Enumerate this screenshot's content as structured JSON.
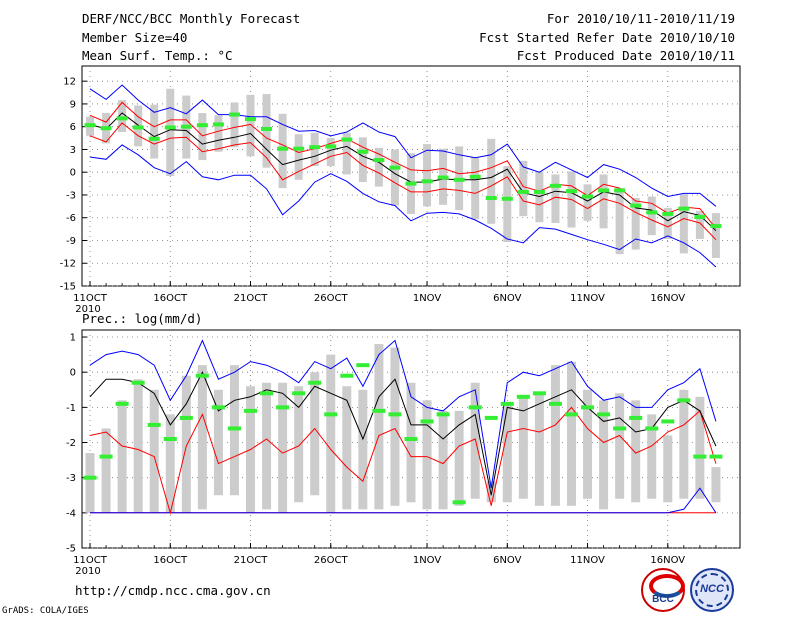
{
  "header": {
    "title": "DERF/NCC/BCC Monthly Forecast",
    "member_size": "Member Size=40",
    "variable": "Mean Surf. Temp.: °C",
    "period": "For 2010/10/11-2010/11/19",
    "fcst_started": "Fcst Started Refer Date 2010/10/10",
    "fcst_produced": "Fcst Produced Date 2010/10/11"
  },
  "footer": {
    "url": "http://cmdp.ncc.cma.gov.cn",
    "grads": "GrADS: COLA/IGES",
    "logo_bcc_text": "BCC",
    "logo_ncc_text": "NCC"
  },
  "colors": {
    "mean": "#000000",
    "spread": "#ff0000",
    "extreme": "#0000ff",
    "obs": "#33ee33",
    "box": "#cccccc"
  },
  "chart_data": [
    {
      "type": "line",
      "title": "Mean Surf. Temp.: °C",
      "ylim": [
        -15,
        14
      ],
      "yticks": [
        "12",
        "9",
        "6",
        "3",
        "0",
        "-3",
        "-6",
        "-9",
        "-12",
        "-15"
      ],
      "ytick_values": [
        12,
        9,
        6,
        3,
        0,
        -3,
        -6,
        -9,
        -12,
        -15
      ],
      "x": [
        11,
        12,
        13,
        14,
        15,
        16,
        17,
        18,
        19,
        20,
        21,
        22,
        23,
        24,
        25,
        26,
        27,
        28,
        29,
        30,
        31,
        32,
        33,
        34,
        35,
        36,
        37,
        38,
        39,
        40,
        41,
        42,
        43,
        44,
        45,
        46,
        47,
        48,
        49,
        50
      ],
      "xticks": [
        "11OCT",
        "16OCT",
        "21OCT",
        "26OCT",
        "1NOV",
        "6NOV",
        "11NOV",
        "16NOV"
      ],
      "xtick_values": [
        11,
        16,
        21,
        26,
        32,
        37,
        42,
        47
      ],
      "xtick_year": "2010",
      "series": [
        {
          "name": "ensemble-max",
          "values": [
            11,
            9.6,
            11.5,
            9.5,
            7.9,
            8.5,
            7.7,
            9.5,
            7.6,
            7.6,
            7.3,
            7.3,
            6.3,
            5.4,
            5.5,
            4.8,
            5.3,
            6.5,
            5.3,
            4.7,
            1.9,
            2.9,
            2.8,
            2.3,
            1.9,
            2.3,
            3.7,
            0.7,
            0,
            1.3,
            0.3,
            -0.7,
            1,
            0.4,
            -0.7,
            -2.1,
            -3.2,
            -2.8,
            -2.8,
            -4.5
          ]
        },
        {
          "name": "upper-spread",
          "values": [
            7.5,
            6.6,
            9.2,
            7.3,
            6,
            6.9,
            6.9,
            4.8,
            5.4,
            5.9,
            6.3,
            4.5,
            3.6,
            2.6,
            3.1,
            3.8,
            4.4,
            3.3,
            2.4,
            1.3,
            0.3,
            0.2,
            0.5,
            -0.2,
            0,
            0.6,
            1.5,
            -1.9,
            -2.5,
            -1.6,
            -1.8,
            -3.1,
            -1.6,
            -2.1,
            -3.8,
            -4.1,
            -5.4,
            -4.6,
            -4.8,
            -7.4
          ]
        },
        {
          "name": "ensemble-mean",
          "values": [
            6.3,
            5.7,
            7.8,
            6.2,
            4.7,
            5.6,
            5.5,
            3.7,
            4.2,
            4.6,
            5.1,
            3,
            1,
            1.6,
            2.1,
            2.9,
            3.4,
            2.1,
            1.3,
            -0.2,
            -1.3,
            -1.3,
            -0.9,
            -1,
            -1,
            -0.7,
            0.4,
            -2.7,
            -3.2,
            -2.5,
            -2.7,
            -3.8,
            -2.6,
            -3,
            -4.7,
            -5,
            -6.4,
            -5.2,
            -5.7,
            -7.7
          ]
        },
        {
          "name": "lower-spread",
          "values": [
            4.8,
            4,
            6.5,
            4.8,
            3.7,
            4.5,
            4.6,
            2.7,
            3.1,
            3.6,
            3.9,
            1.9,
            -1,
            0.1,
            1.1,
            2.1,
            2.6,
            0.9,
            -0.1,
            -1.4,
            -2.6,
            -2.6,
            -2.2,
            -2.4,
            -2.8,
            -1.8,
            -0.6,
            -3.8,
            -4.3,
            -3.3,
            -3.6,
            -4.8,
            -3.5,
            -4.1,
            -5.3,
            -6.3,
            -7.2,
            -6.1,
            -6.7,
            -8.9
          ]
        },
        {
          "name": "ensemble-min",
          "values": [
            2,
            1.7,
            3.6,
            2.3,
            0.6,
            -0.2,
            1.4,
            -0.6,
            -1,
            -0.4,
            -0.4,
            -2.2,
            -5.6,
            -3.8,
            -1.3,
            -0.2,
            -1.2,
            -2.8,
            -3.9,
            -4.4,
            -6.4,
            -5.4,
            -5.3,
            -5.5,
            -6.3,
            -7.4,
            -8.8,
            -9.3,
            -7.3,
            -7.5,
            -8.2,
            -8.9,
            -9.5,
            -10.2,
            -8.8,
            -9.3,
            -8.4,
            -9.3,
            -10.6,
            -12.5
          ]
        },
        {
          "name": "box-top",
          "values": [
            7.3,
            7.8,
            9.5,
            8.8,
            8.9,
            11,
            10.1,
            7.8,
            7.5,
            9.2,
            10.2,
            10.3,
            7.7,
            5,
            5.2,
            4.5,
            5.2,
            4.6,
            3.2,
            3,
            2.5,
            3.7,
            3.1,
            3.4,
            2,
            4.4,
            0.8,
            1.5,
            0.1,
            -0.3,
            0.1,
            -1.6,
            -0.3,
            -2.1,
            -3.4,
            -3.2,
            -4.7,
            -2.9,
            -5.1,
            -5.4
          ]
        },
        {
          "name": "box-bottom",
          "values": [
            4.8,
            3.8,
            5.3,
            3.4,
            1.8,
            -0.5,
            1.8,
            1.6,
            2.7,
            3.3,
            2.1,
            0.6,
            -2.1,
            -1,
            0.8,
            0.8,
            -0.3,
            -1.3,
            -1.9,
            -4.4,
            -5.5,
            -4.5,
            -4.3,
            -5,
            -6.2,
            -6.8,
            -9.2,
            -5.8,
            -6.6,
            -6.7,
            -7.3,
            -6.4,
            -7.4,
            -10.8,
            -10.2,
            -8.3,
            -8.8,
            -10.7,
            -8.8,
            -11.3
          ]
        },
        {
          "name": "observed",
          "values": [
            6.2,
            5.8,
            7.1,
            5.9,
            4.4,
            5.9,
            6,
            6.2,
            6.3,
            7.6,
            7,
            5.7,
            3.1,
            3.1,
            3.3,
            3.4,
            4.3,
            2.7,
            1.6,
            0.6,
            -1.5,
            -1.2,
            -0.7,
            -1,
            -0.6,
            -3.4,
            -3.5,
            -2.6,
            -2.6,
            -1.8,
            -2.5,
            -3.2,
            -2.4,
            -2.4,
            -4.4,
            -5.3,
            -5.5,
            -4.8,
            -5.9,
            -7.1
          ]
        }
      ]
    },
    {
      "type": "line",
      "title": "Prec.: log(mm/d)",
      "ylim": [
        -5,
        1.2
      ],
      "yticks": [
        "1",
        "0",
        "-1",
        "-2",
        "-3",
        "-4",
        "-5"
      ],
      "ytick_values": [
        1,
        0,
        -1,
        -2,
        -3,
        -4,
        -5
      ],
      "x": [
        11,
        12,
        13,
        14,
        15,
        16,
        17,
        18,
        19,
        20,
        21,
        22,
        23,
        24,
        25,
        26,
        27,
        28,
        29,
        30,
        31,
        32,
        33,
        34,
        35,
        36,
        37,
        38,
        39,
        40,
        41,
        42,
        43,
        44,
        45,
        46,
        47,
        48,
        49,
        50
      ],
      "xticks": [
        "11OCT",
        "16OCT",
        "21OCT",
        "26OCT",
        "1NOV",
        "6NOV",
        "11NOV",
        "16NOV"
      ],
      "xtick_values": [
        11,
        16,
        21,
        26,
        32,
        37,
        42,
        47
      ],
      "xtick_year": "2010",
      "series": [
        {
          "name": "ensemble-max",
          "values": [
            0.2,
            0.5,
            0.6,
            0.5,
            0.2,
            -0.8,
            -0.1,
            0.9,
            -0.2,
            0,
            0.3,
            0.2,
            0,
            -0.3,
            0.3,
            0.1,
            0.4,
            -0.4,
            0.5,
            0.9,
            -0.7,
            -1,
            -1.1,
            -0.7,
            -0.5,
            -3.3,
            -0.3,
            0,
            -0.1,
            0.1,
            0.3,
            -0.4,
            -0.8,
            -0.7,
            -1,
            -1,
            -0.5,
            -0.3,
            0.1,
            -1.4
          ]
        },
        {
          "name": "ensemble-mean",
          "values": [
            -0.7,
            -0.2,
            -0.2,
            -0.3,
            -0.6,
            -1.5,
            -0.9,
            0,
            -1.1,
            -0.8,
            -0.7,
            -0.5,
            -0.6,
            -1,
            -0.4,
            -0.6,
            -0.8,
            -1.9,
            -0.7,
            -0.2,
            -1.5,
            -1.5,
            -1.9,
            -1.5,
            -1.2,
            -3.5,
            -1,
            -1.1,
            -0.9,
            -0.7,
            -0.5,
            -1,
            -1.4,
            -1.3,
            -1.7,
            -1.6,
            -1,
            -0.8,
            -1.1,
            -2.1
          ]
        },
        {
          "name": "lower-spread",
          "values": [
            -1.8,
            -1.7,
            -2.1,
            -2.2,
            -2.4,
            -4,
            -2.1,
            -1.2,
            -2.6,
            -2.4,
            -2.2,
            -1.9,
            -2.3,
            -2.1,
            -1.6,
            -2.2,
            -2.7,
            -3.1,
            -1.8,
            -1.6,
            -2.4,
            -2.4,
            -2.6,
            -2.1,
            -1.9,
            -3.8,
            -1.7,
            -1.6,
            -1.7,
            -1.5,
            -1,
            -1.6,
            -2,
            -1.8,
            -2.3,
            -2.1,
            -1.7,
            -1.5,
            -1.1,
            -2.6
          ]
        },
        {
          "name": "ensemble-min",
          "values": [
            -4,
            -4,
            -4,
            -4,
            -4,
            -4,
            -4,
            -4,
            -4,
            -4,
            -4,
            -4,
            -4,
            -4,
            -4,
            -4,
            -4,
            -4,
            -4,
            -4,
            -4,
            -4,
            -4,
            -4,
            -4,
            -4,
            -4,
            -4,
            -4,
            -4,
            -4,
            -4,
            -4,
            -4,
            -4,
            -4,
            -4,
            -4,
            -4,
            -4
          ]
        },
        {
          "name": "extreme-low",
          "values": [
            -4,
            -4,
            -4,
            -4,
            -4,
            -4,
            -4,
            -4,
            -4,
            -4,
            -4,
            -4,
            -4,
            -4,
            -4,
            -4,
            -4,
            -4,
            -4,
            -4,
            -4,
            -4,
            -4,
            -4,
            -4,
            -4,
            -4,
            -4,
            -4,
            -4,
            -4,
            -4,
            -4,
            -4,
            -4,
            -4,
            -4,
            -3.9,
            -3.3,
            -4
          ]
        },
        {
          "name": "box-top",
          "values": [
            -2.3,
            -1.6,
            -0.8,
            -0.2,
            -0.5,
            -1.2,
            -0.1,
            0.2,
            -0.5,
            0.2,
            -0.4,
            -0.3,
            -0.3,
            -0.4,
            0,
            0.5,
            -0.4,
            -0.5,
            0.8,
            0.7,
            -0.3,
            -0.8,
            -1.1,
            -1.1,
            -0.3,
            -3.1,
            -0.9,
            -0.7,
            -0.6,
            0.2,
            0.3,
            -0.5,
            -0.8,
            -0.6,
            -0.8,
            -1.2,
            -1.8,
            -0.5,
            -0.7,
            -2.7
          ]
        },
        {
          "name": "box-bottom",
          "values": [
            -4,
            -4,
            -4,
            -4,
            -4,
            -4,
            -4,
            -3.9,
            -3.5,
            -3.5,
            -4,
            -3.9,
            -4,
            -3.7,
            -3.5,
            -4,
            -3.9,
            -3.9,
            -3.9,
            -3.8,
            -3.7,
            -3.9,
            -3.9,
            -3.8,
            -3.6,
            -3.7,
            -3.7,
            -3.6,
            -3.8,
            -3.8,
            -3.8,
            -3.6,
            -3.9,
            -3.6,
            -3.7,
            -3.6,
            -3.7,
            -3.6,
            -3.6,
            -3.7
          ]
        },
        {
          "name": "observed",
          "values": [
            -3,
            -2.4,
            -0.9,
            -0.3,
            -1.5,
            -1.9,
            -1.3,
            -0.1,
            -1,
            -1.6,
            -1.1,
            -0.6,
            -1,
            -0.6,
            -0.3,
            -1.2,
            -0.1,
            0.2,
            -1.1,
            -1.2,
            -1.9,
            -1.4,
            -1.2,
            -3.7,
            -1,
            -1.3,
            -0.9,
            -0.7,
            -0.6,
            -0.9,
            -1.2,
            -1.0,
            -1.2,
            -1.6,
            -1.3,
            -1.6,
            -1.4,
            -0.8,
            -2.4,
            -2.4
          ]
        }
      ]
    }
  ]
}
